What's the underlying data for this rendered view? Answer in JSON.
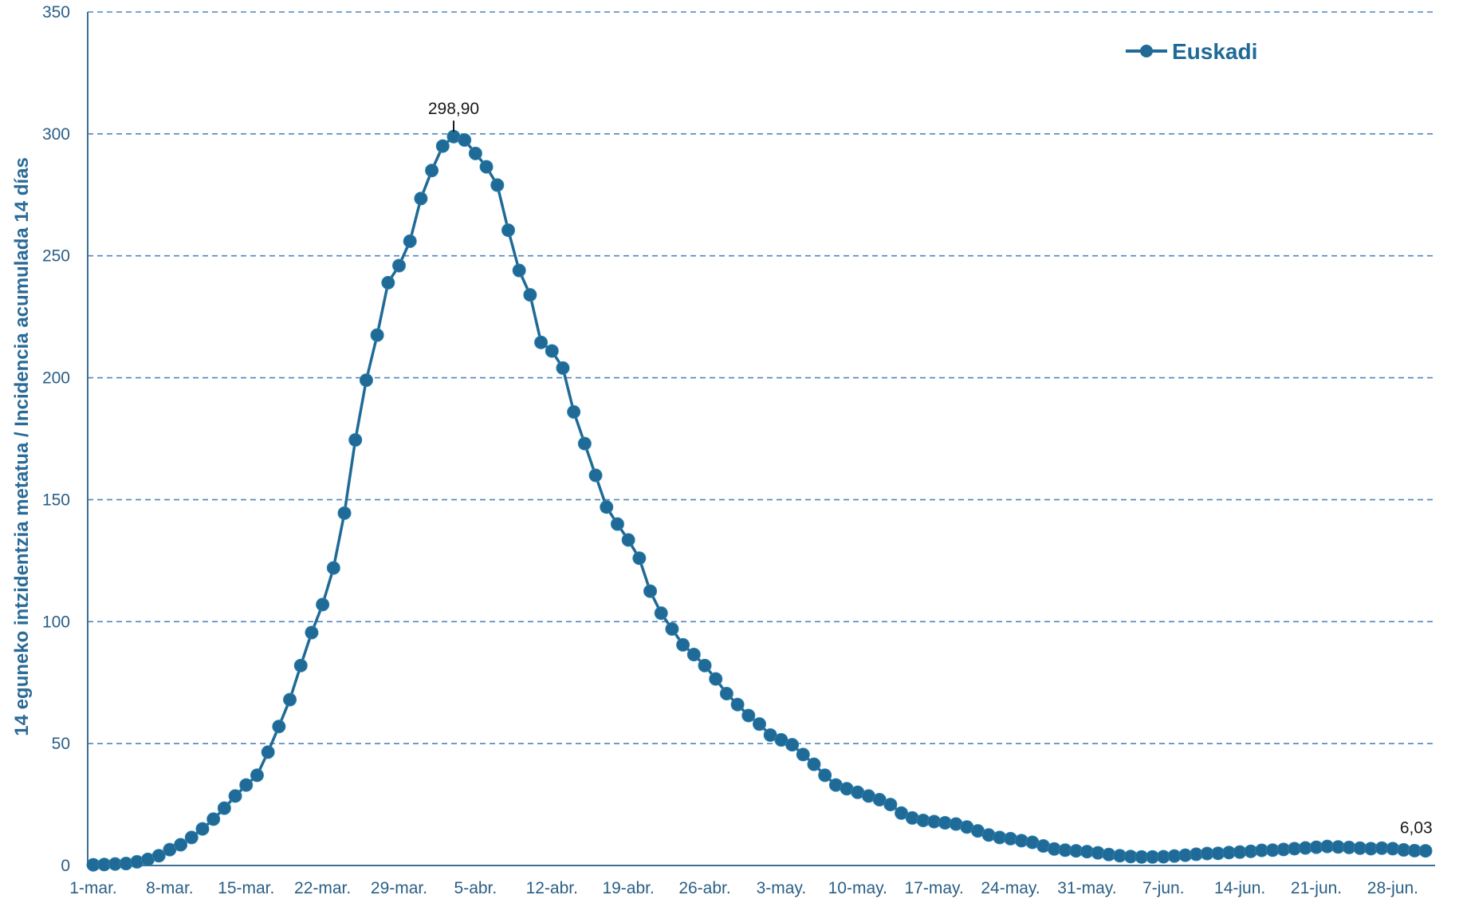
{
  "chart_data": {
    "type": "line",
    "title": "",
    "ylabel": "14 eguneko intzidentzia metatua / Incidencia acumulada 14 días",
    "xlabel": "",
    "ylim": [
      0,
      350
    ],
    "y_ticks": [
      "0",
      "50",
      "100",
      "150",
      "200",
      "250",
      "300",
      "350"
    ],
    "grid": true,
    "legend_position": "top-right",
    "x_tick_labels": [
      "1-mar.",
      "8-mar.",
      "15-mar.",
      "22-mar.",
      "29-mar.",
      "5-abr.",
      "12-abr.",
      "19-abr.",
      "26-abr.",
      "3-may.",
      "10-may.",
      "17-may.",
      "24-may.",
      "31-may.",
      "7-jun.",
      "14-jun.",
      "21-jun.",
      "28-jun."
    ],
    "x_start": "1-mar.",
    "x_end": "28-jun.",
    "series": [
      {
        "name": "Euskadi",
        "color": "#1f6a96",
        "values": [
          0.3,
          0.4,
          0.6,
          0.8,
          1.5,
          2.5,
          4,
          6.5,
          8.5,
          11.5,
          15,
          19,
          23.5,
          28.5,
          33,
          37,
          46.5,
          57,
          68,
          82,
          95.5,
          107,
          122,
          144.5,
          174.5,
          199,
          217.5,
          239,
          246,
          256,
          273.5,
          285,
          295,
          298.9,
          297.5,
          292,
          286.5,
          279,
          260.5,
          244,
          234,
          214.5,
          211,
          204,
          186,
          173,
          160,
          147,
          140,
          133.5,
          126,
          112.5,
          103.5,
          97,
          90.5,
          86.5,
          82,
          76.5,
          70.5,
          66,
          61.5,
          58,
          53.5,
          51.5,
          49.5,
          45.5,
          41.5,
          37,
          33,
          31.5,
          30,
          28.5,
          27,
          25,
          21.5,
          19.5,
          18.5,
          18,
          17.5,
          17,
          15.8,
          14.2,
          12.5,
          11.5,
          11,
          10.2,
          9.5,
          8,
          6.8,
          6.3,
          6,
          5.7,
          5.2,
          4.5,
          4,
          3.7,
          3.5,
          3.5,
          3.6,
          3.9,
          4.2,
          4.6,
          4.9,
          5,
          5.3,
          5.5,
          5.8,
          6.2,
          6.3,
          6.6,
          6.9,
          7.2,
          7.5,
          7.8,
          7.6,
          7.4,
          7.1,
          6.9,
          7.1,
          6.9,
          6.4,
          6.1,
          6.03
        ],
        "labeled_points": [
          {
            "index": 33,
            "label": "298,90"
          },
          {
            "index": 121,
            "label": "6,03"
          }
        ]
      }
    ]
  }
}
